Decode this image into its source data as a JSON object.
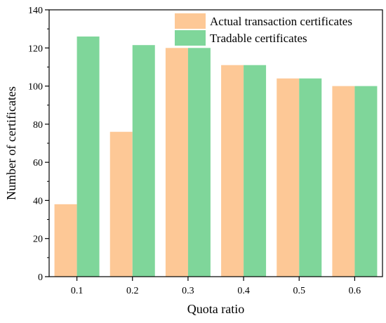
{
  "chart_data": {
    "type": "bar",
    "title": "",
    "xlabel": "Quota ratio",
    "ylabel": "Number of certificates",
    "categories": [
      "0.1",
      "0.2",
      "0.3",
      "0.4",
      "0.5",
      "0.6"
    ],
    "series": [
      {
        "name": "Actual transaction certificates",
        "color": "#FDC896",
        "values": [
          38,
          76,
          120,
          111,
          104,
          100
        ]
      },
      {
        "name": "Tradable certificates",
        "color": "#7FD69A",
        "values": [
          126,
          121.5,
          120,
          111,
          104,
          100
        ]
      }
    ],
    "ylim": [
      0,
      140
    ],
    "yticks": [
      "0",
      "20",
      "40",
      "60",
      "80",
      "100",
      "120",
      "140"
    ],
    "grid": false,
    "legend_position": "top-right"
  }
}
